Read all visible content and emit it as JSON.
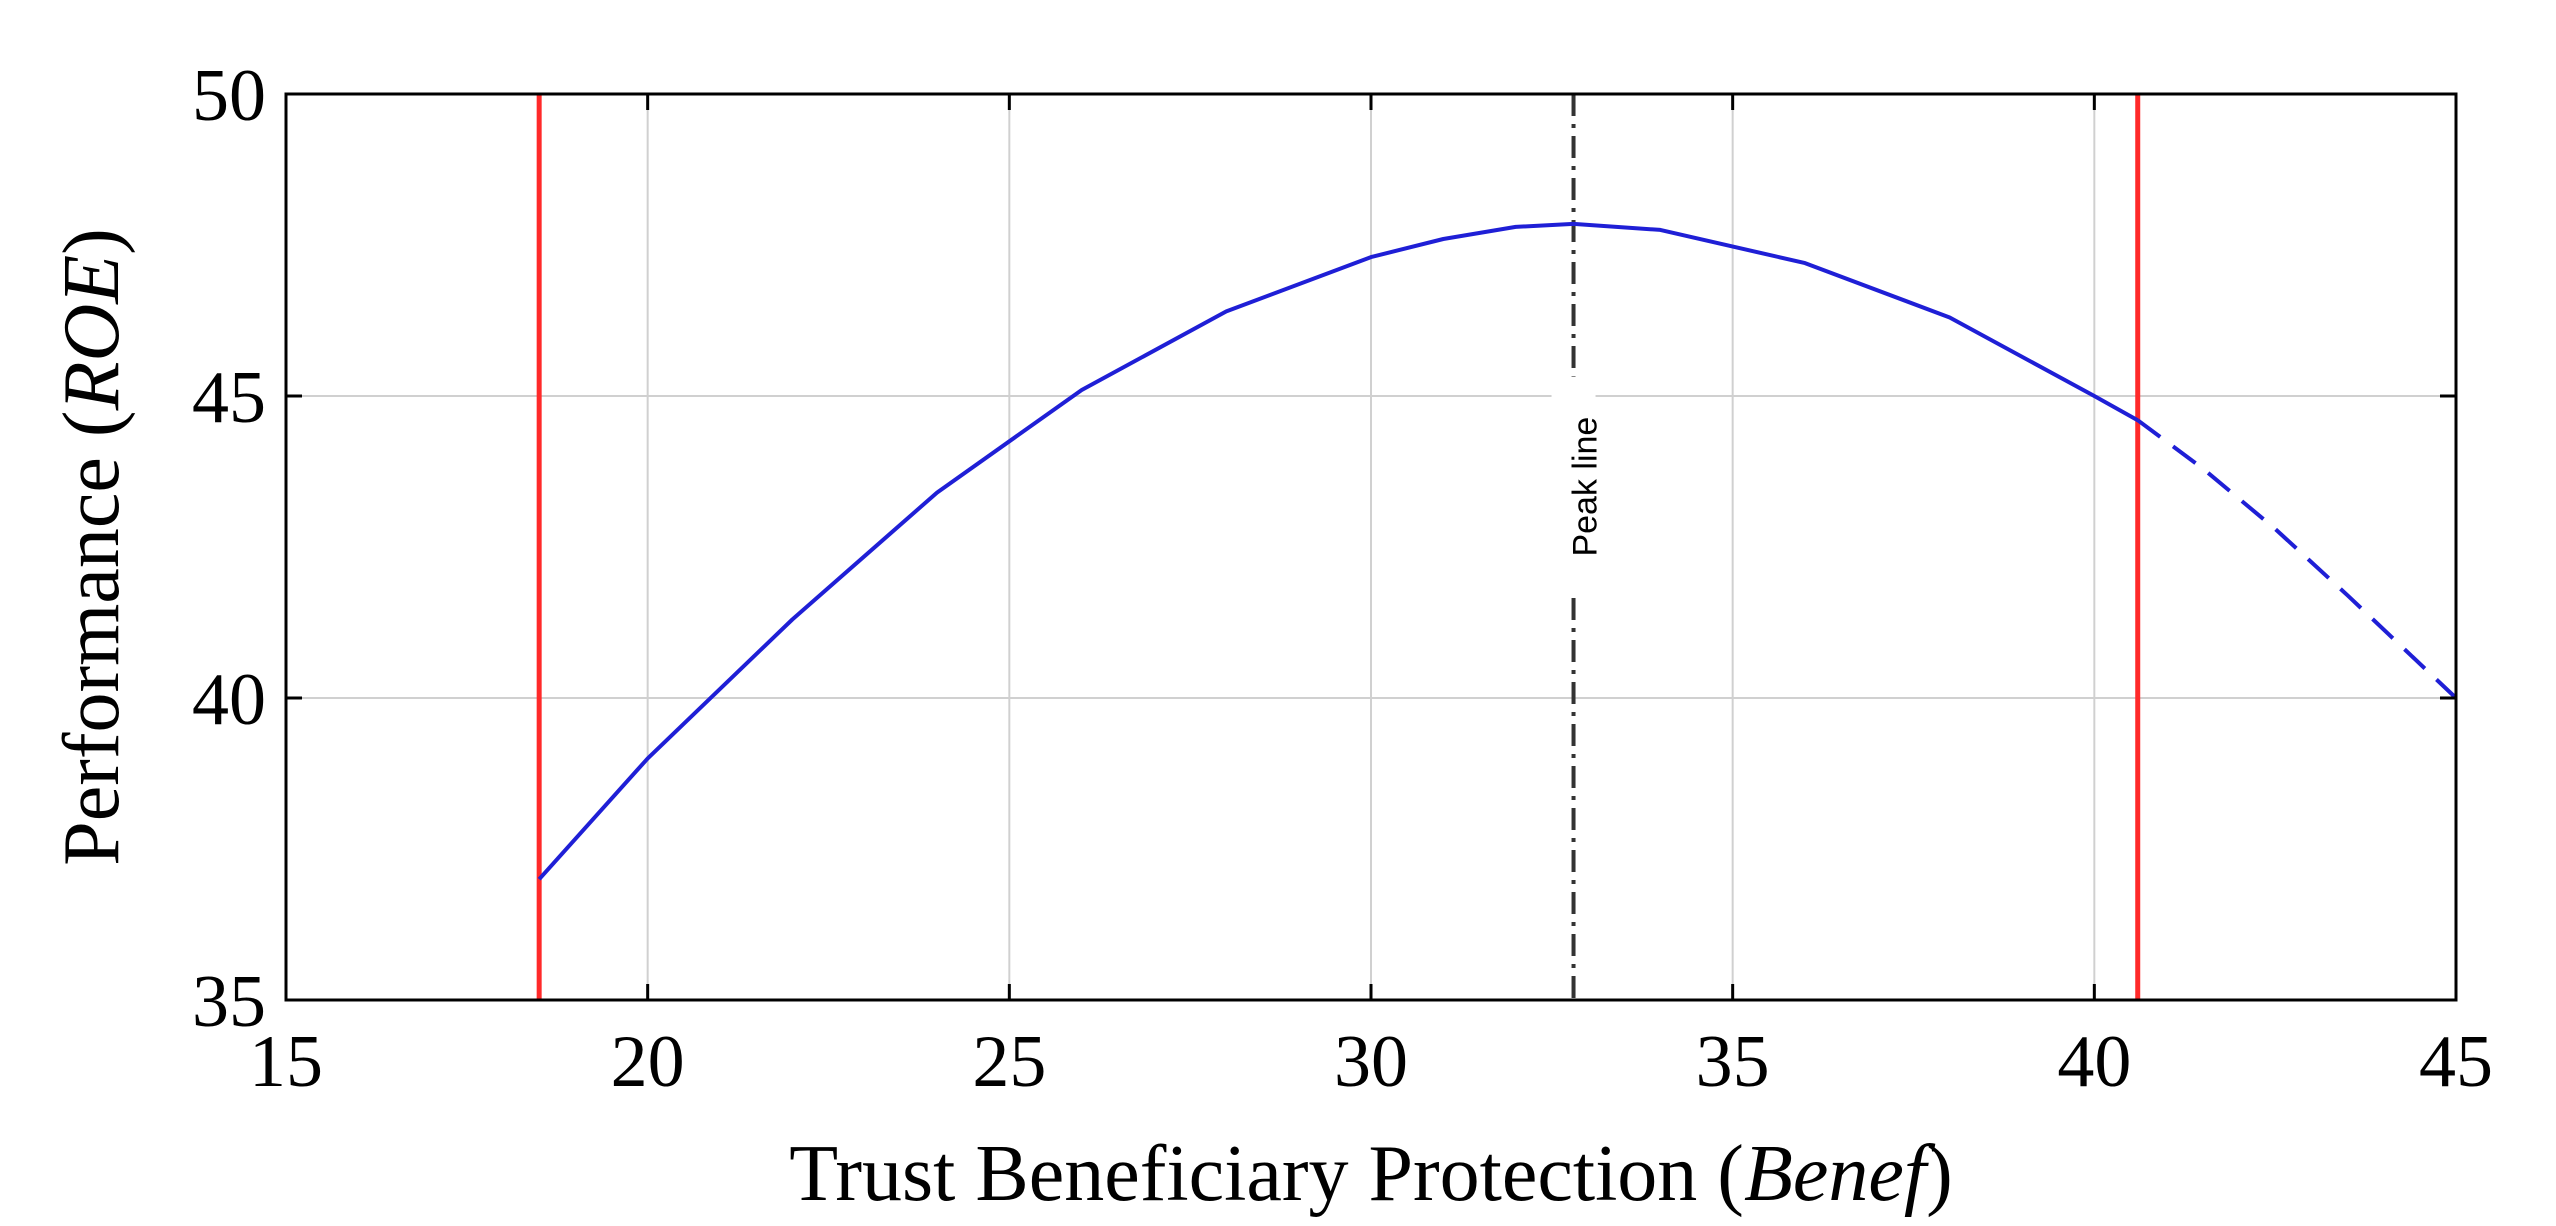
{
  "chart_data": {
    "type": "line",
    "title": "",
    "xlabel": {
      "text": "Trust Beneficiary Protection (",
      "math": "Benef",
      "close": ")"
    },
    "ylabel": {
      "text": "Performance (",
      "math": "ROE",
      "close": ")"
    },
    "xlim": [
      15,
      45
    ],
    "ylim": [
      35,
      50
    ],
    "xticks": [
      15,
      20,
      25,
      30,
      35,
      40,
      45
    ],
    "yticks": [
      35,
      40,
      45,
      50
    ],
    "grid": true,
    "series": [
      {
        "style": "solid",
        "color": "#1f1fd6",
        "x": [
          18.5,
          20,
          22,
          24,
          26,
          28,
          30,
          31,
          32,
          32.8,
          34,
          36,
          38,
          40,
          40.6
        ],
        "y": [
          37.0,
          39.0,
          41.3,
          43.4,
          45.1,
          46.4,
          47.3,
          47.6,
          47.8,
          47.85,
          47.75,
          47.2,
          46.3,
          45.0,
          44.6
        ]
      },
      {
        "style": "dashed",
        "color": "#1f1fd6",
        "x": [
          40.6,
          41.5,
          42.5,
          43.5,
          45
        ],
        "y": [
          44.6,
          43.8,
          42.8,
          41.7,
          40.0
        ]
      }
    ],
    "vertical_lines": [
      {
        "x": 18.5,
        "color": "#ff2a2a",
        "style": "solid"
      },
      {
        "x": 40.6,
        "color": "#ff2a2a",
        "style": "solid"
      },
      {
        "x": 32.8,
        "color": "#333333",
        "style": "dashdot",
        "label": "Peak line"
      }
    ]
  }
}
